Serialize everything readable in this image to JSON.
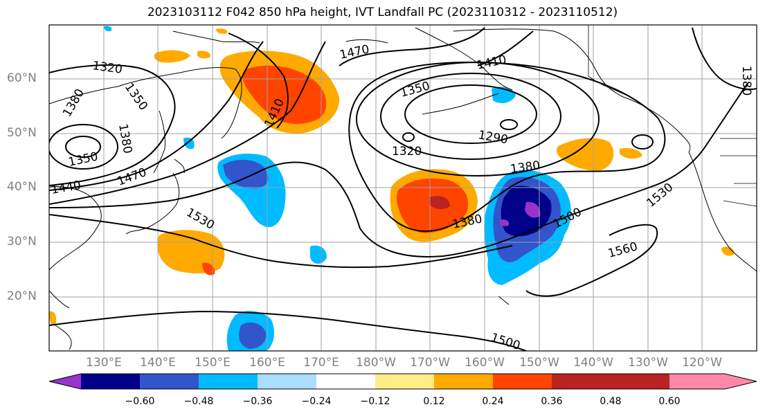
{
  "title": "2023103112 F042 850 hPa height, IVT Landfall PC (2023110312 - 2023110512)",
  "lat_labels": [
    "60°N",
    "50°N",
    "40°N",
    "30°N",
    "20°N"
  ],
  "lon_labels": [
    "130°E",
    "140°E",
    "150°E",
    "160°E",
    "170°E",
    "180°W",
    "170°W",
    "160°W",
    "150°W",
    "140°W",
    "130°W",
    "120°W"
  ],
  "colorbar": {
    "ticks": [
      "−0.60",
      "−0.48",
      "−0.36",
      "−0.24",
      "−0.12",
      "0.12",
      "0.24",
      "0.36",
      "0.48",
      "0.60"
    ],
    "colors": [
      "#9933cc",
      "#000088",
      "#3355cc",
      "#00bbff",
      "#aaddff",
      "#ffffff",
      "#ffee88",
      "#ffaa00",
      "#ff4400",
      "#bb2222",
      "#ff88aa"
    ]
  },
  "contour_labels": [
    "1320",
    "1350",
    "1380",
    "1350",
    "1380",
    "1470",
    "1440",
    "1470",
    "1410",
    "1350",
    "1410",
    "1290",
    "1320",
    "1380",
    "1380",
    "1530",
    "1500",
    "1530",
    "1560",
    "1380",
    "1500"
  ]
}
